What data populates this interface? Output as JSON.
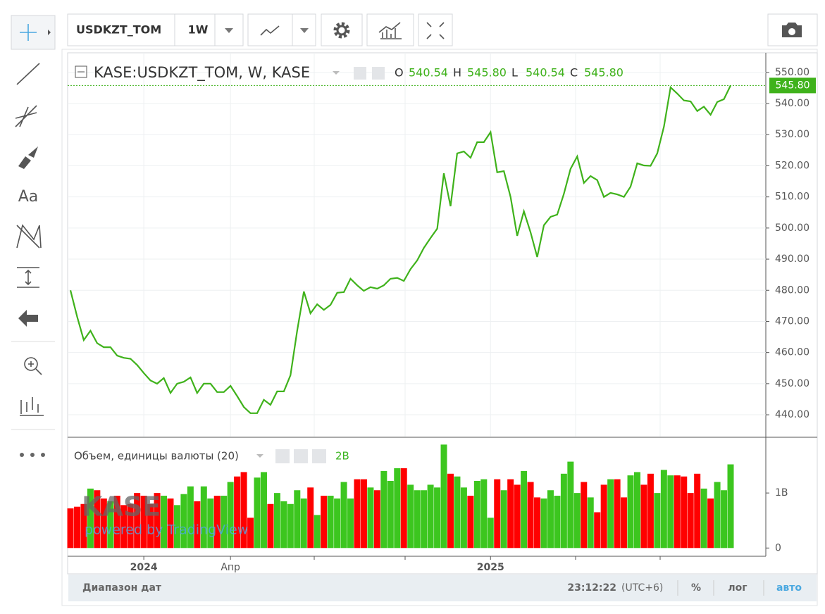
{
  "toolbar": {
    "symbol": "USDKZT_TOM",
    "interval": "1W",
    "tool_text": "Aa"
  },
  "legend": {
    "ohlc": [
      {
        "key": "O",
        "value": "540.54"
      },
      {
        "key": "H",
        "value": "545.80"
      },
      {
        "key": "L",
        "value": "540.54"
      },
      {
        "key": "C",
        "value": "545.80"
      }
    ]
  },
  "watermark": {
    "logo": "KASE",
    "powered": "powered by TradingView"
  },
  "footer": {
    "range": "Диапазон дат",
    "time": "23:12:22",
    "tz": "(UTC+6)",
    "percent": "%",
    "log": "лог",
    "auto": "авто"
  },
  "chart_data": [
    {
      "type": "line",
      "title": "KASE:USDKZT_TOM, W, KASE",
      "color": "#3fb21b",
      "grid": true,
      "categories": [
        null,
        null,
        null,
        null,
        null,
        null,
        null,
        null,
        null,
        null,
        null,
        "2024",
        null,
        null,
        null,
        null,
        null,
        null,
        null,
        null,
        null,
        null,
        null,
        null,
        "Апр",
        null,
        null,
        null,
        null,
        null,
        null,
        null,
        null,
        null,
        null,
        null,
        null,
        null,
        null,
        null,
        null,
        null,
        null,
        null,
        null,
        null,
        null,
        null,
        null,
        null,
        null,
        null,
        null,
        null,
        null,
        null,
        null,
        null,
        null,
        null,
        null,
        null,
        null,
        "2025",
        null,
        null,
        null,
        null,
        null,
        null,
        null,
        null,
        null,
        null,
        null,
        null,
        null,
        null,
        null,
        null,
        null,
        null,
        null,
        null,
        null,
        null,
        null,
        null,
        null,
        null,
        null,
        null,
        null,
        null,
        null,
        null,
        null,
        null,
        null,
        null
      ],
      "values": [
        480,
        471.5,
        464,
        467,
        463,
        461.7,
        461.7,
        459,
        458.3,
        458,
        456,
        453.4,
        451,
        450,
        451.8,
        447,
        450,
        450.6,
        452,
        447,
        450,
        450,
        447.3,
        447.3,
        449.3,
        446,
        442.5,
        440.5,
        440.5,
        444.8,
        443.2,
        447.5,
        447.5,
        452.7,
        467,
        479.6,
        472.6,
        475.5,
        473.7,
        475.3,
        479.2,
        479.4,
        483.7,
        481.6,
        479.8,
        481,
        480.5,
        481.6,
        483.7,
        484,
        483,
        486.8,
        489.6,
        493.6,
        496.8,
        499.8,
        517.6,
        507,
        524,
        524.6,
        522.6,
        527.6,
        527.6,
        530.8,
        517.9,
        518.3,
        510,
        497.5,
        505.4,
        498.6,
        490.7,
        500.9,
        503.6,
        504.3,
        511,
        519,
        523,
        514.5,
        516.7,
        515.4,
        510,
        511.3,
        510.8,
        510,
        513.3,
        520.8,
        520.1,
        520,
        524,
        532.6,
        545.2,
        543.2,
        541,
        540.7,
        537.6,
        539,
        536.4,
        540.5,
        541.4,
        545.8
      ],
      "last_price": {
        "value": 545.8,
        "label": "545.80"
      },
      "ylim": [
        433,
        556.3
      ],
      "yticks": [
        {
          "value": 440,
          "label": "440.00"
        },
        {
          "value": 450,
          "label": "450.00"
        },
        {
          "value": 460,
          "label": "460.00"
        },
        {
          "value": 470,
          "label": "470.00"
        },
        {
          "value": 480,
          "label": "480.00"
        },
        {
          "value": 490,
          "label": "490.00"
        },
        {
          "value": 500,
          "label": "500.00"
        },
        {
          "value": 510,
          "label": "510.00"
        },
        {
          "value": 520,
          "label": "520.00"
        },
        {
          "value": 530,
          "label": "530.00"
        },
        {
          "value": 540,
          "label": "540.00"
        },
        {
          "value": 550,
          "label": "550.00"
        }
      ]
    },
    {
      "type": "bar",
      "title": "Объем, единицы валюты (20)",
      "legend_value": "2B",
      "up_color": "#3cc61f",
      "down_color": "#ff0000",
      "values": [
        0.72,
        0.75,
        0.8,
        1.08,
        1.05,
        0.9,
        0.85,
        0.95,
        0.78,
        0.8,
        1.0,
        0.95,
        0.8,
        1.0,
        0.95,
        0.9,
        0.78,
        0.98,
        1.12,
        0.85,
        1.12,
        0.9,
        0.95,
        0.95,
        1.2,
        1.3,
        1.38,
        0.55,
        1.28,
        1.38,
        0.8,
        1.0,
        0.85,
        0.8,
        1.05,
        0.9,
        1.1,
        0.6,
        0.95,
        0.95,
        0.9,
        1.2,
        0.9,
        1.25,
        1.25,
        1.1,
        1.05,
        1.4,
        1.22,
        1.45,
        1.45,
        1.15,
        1.05,
        1.05,
        1.15,
        1.1,
        1.88,
        1.35,
        1.3,
        1.1,
        0.95,
        1.22,
        1.25,
        0.55,
        1.25,
        1.05,
        1.25,
        1.15,
        1.4,
        1.2,
        0.92,
        0.9,
        1.05,
        0.95,
        1.35,
        1.57,
        1.0,
        1.2,
        0.92,
        0.65,
        1.15,
        1.25,
        1.25,
        0.92,
        1.32,
        1.38,
        1.15,
        1.35,
        1.0,
        1.42,
        1.32,
        1.32,
        1.3,
        1.0,
        1.35,
        1.08,
        0.9,
        1.2,
        1.05,
        1.52
      ],
      "ylim": [
        -0.15,
        2.0
      ],
      "yticks": [
        0,
        {
          "value": 1,
          "label": "1B"
        }
      ]
    }
  ]
}
